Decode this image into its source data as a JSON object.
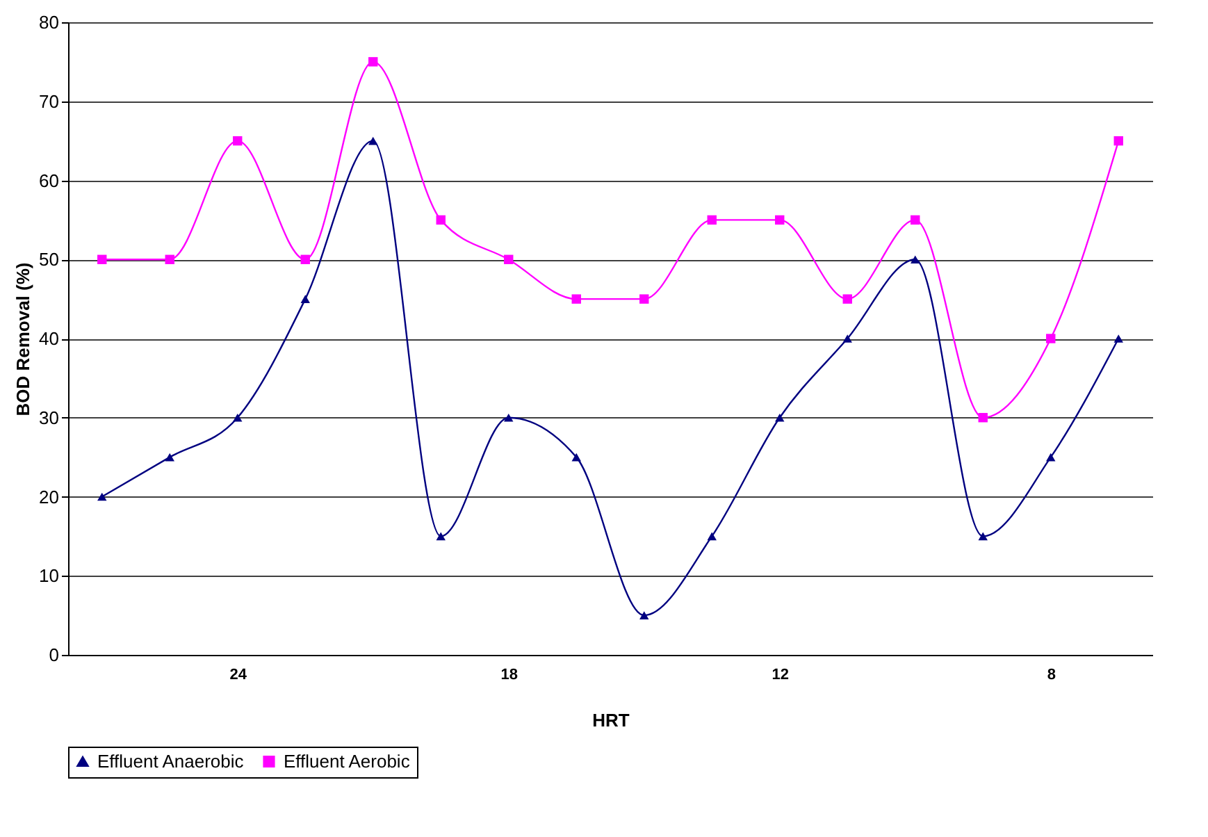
{
  "chart_data": {
    "type": "line",
    "xlabel": "HRT",
    "ylabel": "BOD Removal (%)",
    "categories": [
      null,
      null,
      "24",
      null,
      null,
      null,
      "18",
      null,
      null,
      null,
      "12",
      null,
      null,
      null,
      "8",
      null
    ],
    "ylim": [
      0,
      80
    ],
    "yticks": [
      0,
      10,
      20,
      30,
      40,
      50,
      60,
      70,
      80
    ],
    "grid": "y",
    "legend": "bottom",
    "series": [
      {
        "name": "Effluent Anaerobic",
        "color": "#000080",
        "marker": "triangle",
        "values": [
          20,
          25,
          30,
          45,
          65,
          15,
          30,
          25,
          5,
          15,
          30,
          40,
          50,
          15,
          25,
          40
        ]
      },
      {
        "name": "Effluent Aerobic",
        "color": "#ff00ff",
        "marker": "square",
        "values": [
          50,
          50,
          65,
          50,
          75,
          55,
          50,
          45,
          45,
          55,
          55,
          45,
          55,
          30,
          40,
          65
        ]
      }
    ]
  }
}
